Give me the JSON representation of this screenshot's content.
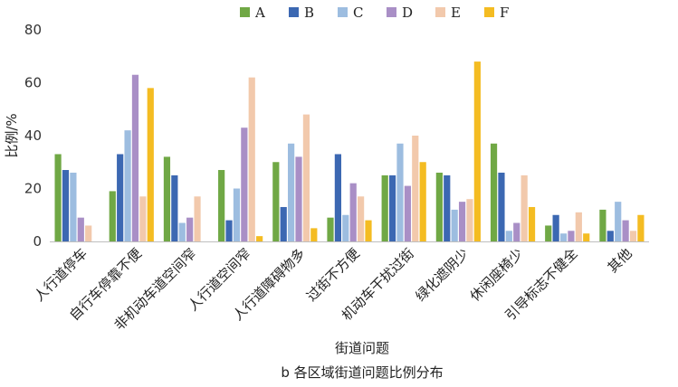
{
  "chart_data": {
    "type": "bar",
    "title": "b 各区域街道问题比例分布",
    "xlabel": "街道问题",
    "ylabel": "比例/%",
    "ylim": [
      0,
      80
    ],
    "yticks": [
      0,
      20,
      40,
      60,
      80
    ],
    "grid": false,
    "legend_position": "top",
    "categories": [
      "人行道停车",
      "自行车停靠不便",
      "非机动车道空间窄",
      "人行道空间窄",
      "人行道障碍物多",
      "过街不方便",
      "机动车干扰过街",
      "绿化遮阴少",
      "休闲座椅少",
      "引导标志不健全",
      "其他"
    ],
    "series": [
      {
        "name": "A",
        "color": "#70a845",
        "values": [
          33,
          19,
          32,
          27,
          30,
          9,
          25,
          26,
          37,
          6,
          12
        ]
      },
      {
        "name": "B",
        "color": "#3c68b2",
        "values": [
          27,
          33,
          25,
          8,
          13,
          33,
          25,
          25,
          26,
          10,
          4
        ]
      },
      {
        "name": "C",
        "color": "#9dbde0",
        "values": [
          26,
          42,
          7,
          20,
          37,
          10,
          37,
          12,
          4,
          3,
          15
        ]
      },
      {
        "name": "D",
        "color": "#a98fc6",
        "values": [
          9,
          63,
          9,
          43,
          32,
          22,
          21,
          15,
          7,
          4,
          8
        ]
      },
      {
        "name": "E",
        "color": "#f2c9ac",
        "values": [
          6,
          17,
          17,
          62,
          48,
          17,
          40,
          16,
          25,
          11,
          4
        ]
      },
      {
        "name": "F",
        "color": "#f4bc22",
        "values": [
          0,
          58,
          0,
          2,
          5,
          8,
          30,
          68,
          13,
          3,
          10
        ]
      }
    ]
  }
}
